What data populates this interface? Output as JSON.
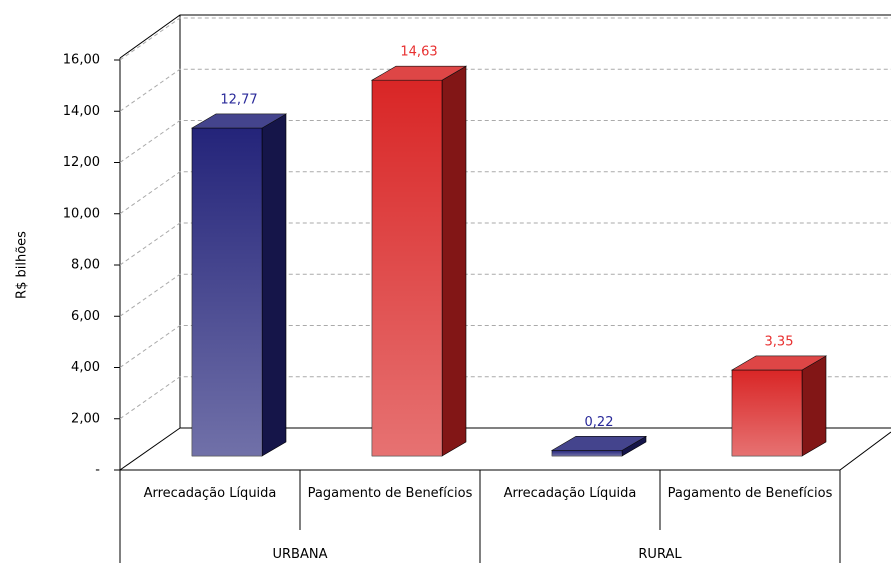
{
  "chart_data": {
    "type": "bar3d",
    "y_label": "R$ bilhões",
    "categories": [
      "URBANA",
      "RURAL"
    ],
    "series": [
      {
        "name": "Arrecadação Líquida",
        "color": "#24247a",
        "label_color": "#2a2a9a",
        "values": [
          12.77,
          0.22
        ],
        "value_labels": [
          "12,77",
          "0,22"
        ]
      },
      {
        "name": "Pagamento de Benefícios",
        "color": "#d92626",
        "label_color": "#e83030",
        "values": [
          14.63,
          3.35
        ],
        "value_labels": [
          "14,63",
          "3,35"
        ]
      }
    ],
    "ylim": [
      0,
      16
    ],
    "yticks": [
      {
        "value": 0,
        "label": "-"
      },
      {
        "value": 2,
        "label": "2,00"
      },
      {
        "value": 4,
        "label": "4,00"
      },
      {
        "value": 6,
        "label": "6,00"
      },
      {
        "value": 8,
        "label": "8,00"
      },
      {
        "value": 10,
        "label": "10,00"
      },
      {
        "value": 12,
        "label": "12,00"
      },
      {
        "value": 14,
        "label": "14,00"
      },
      {
        "value": 16,
        "label": "16,00"
      }
    ],
    "grid": true
  }
}
